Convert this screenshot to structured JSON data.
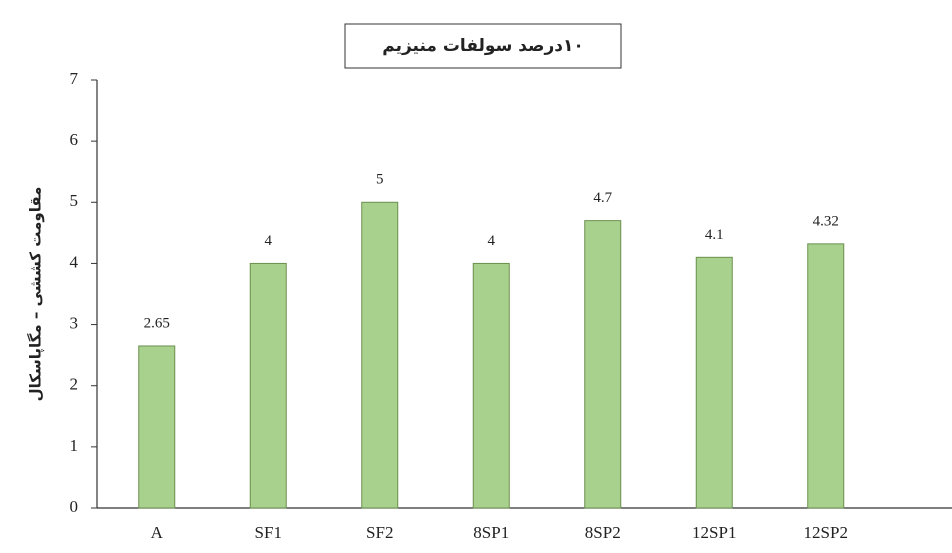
{
  "chart_data": {
    "type": "bar",
    "title": "۱۰درصد سولفات منیزیم",
    "ylabel": "مقاومت کششی – مگاپاسکال",
    "categories": [
      "A",
      "SF1",
      "SF2",
      "8SP1",
      "8SP2",
      "12SP1",
      "12SP2"
    ],
    "values": [
      2.65,
      4,
      5,
      4,
      4.7,
      4.1,
      4.32
    ],
    "color": "#a9d18e",
    "ylim": [
      0,
      7
    ],
    "yticks": [
      0,
      1,
      2,
      3,
      4,
      5,
      6,
      7
    ],
    "grid": false
  }
}
